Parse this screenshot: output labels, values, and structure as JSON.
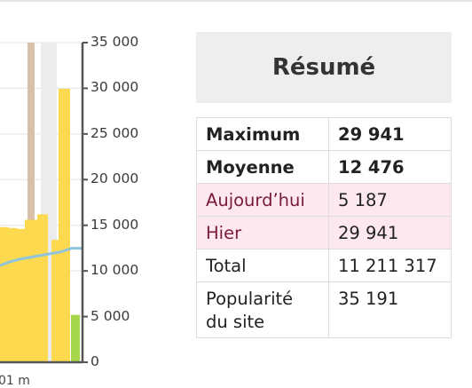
{
  "chart_data": {
    "type": "bar",
    "y_ticks": [
      "35 000",
      "30 000",
      "25 000",
      "20 000",
      "15 000",
      "10 000",
      "5 000",
      "0"
    ],
    "ylim": [
      0,
      35000
    ],
    "x_label_partial": "01 m",
    "bars": [
      {
        "index": 0,
        "value": 14800,
        "color": "#fcd94e"
      },
      {
        "index": 1,
        "value": 14700,
        "color": "#fcd94e"
      },
      {
        "index": 2,
        "value": 14600,
        "color": "#fcd94e"
      },
      {
        "index": 3,
        "value": 14500,
        "color": "#fcd94e"
      },
      {
        "index": 4,
        "value": 15600,
        "color": "#fcd94e"
      },
      {
        "index": 5,
        "value": 16200,
        "color": "#fcd94e"
      },
      {
        "index": 6,
        "value": 13400,
        "color": "#fcd94e"
      },
      {
        "index": 7,
        "value": 29941,
        "color": "#fcd94e"
      },
      {
        "index": 8,
        "value": 5187,
        "color": "#a6d64a"
      }
    ],
    "background_bars": [
      {
        "index": 4,
        "value": 35000,
        "color": "#d9c0a9"
      },
      {
        "index": 6,
        "value": 35000,
        "color": "#ececec"
      }
    ],
    "trend_line": [
      10600,
      11000,
      11300,
      11500,
      11700,
      11900,
      12100,
      12476,
      12476
    ]
  },
  "summary": {
    "title": "Résumé",
    "rows": [
      {
        "label": "Maximum",
        "value": "29 941",
        "style": "bold"
      },
      {
        "label": "Moyenne",
        "value": "12 476",
        "style": "bold"
      },
      {
        "label": "Aujourd’hui",
        "value": "5 187",
        "style": "highlight"
      },
      {
        "label": "Hier",
        "value": "29 941",
        "style": "highlight"
      },
      {
        "label": "Total",
        "value": "11 211 317",
        "style": "normal"
      },
      {
        "label": "Popularité du site",
        "value": "35 191",
        "style": "normal"
      }
    ]
  }
}
